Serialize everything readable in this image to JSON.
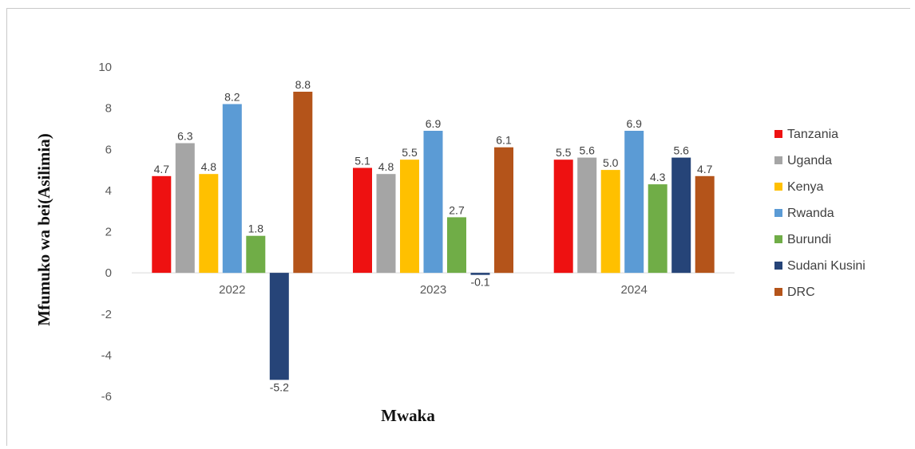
{
  "chart_data": {
    "type": "bar",
    "title": "",
    "xlabel": "Mwaka",
    "ylabel": "Mfumuko wa bei(Asilimia)",
    "categories": [
      "2022",
      "2023",
      "2024"
    ],
    "ylim": [
      -6,
      10
    ],
    "yticks": [
      "10",
      "8",
      "6",
      "4",
      "2",
      "0",
      "-2",
      "-4",
      "-6"
    ],
    "grid": false,
    "legend_position": "right",
    "series": [
      {
        "name": "Tanzania",
        "color": "#ee1111",
        "values": [
          4.7,
          5.1,
          5.5
        ],
        "labels": [
          "4.7",
          "5.1",
          "5.5"
        ]
      },
      {
        "name": "Uganda",
        "color": "#a5a5a5",
        "values": [
          6.3,
          4.8,
          5.6
        ],
        "labels": [
          "6.3",
          "4.8",
          "5.6"
        ]
      },
      {
        "name": "Kenya",
        "color": "#ffc000",
        "values": [
          4.8,
          5.5,
          5.0
        ],
        "labels": [
          "4.8",
          "5.5",
          "5.0"
        ]
      },
      {
        "name": "Rwanda",
        "color": "#5b9bd5",
        "values": [
          8.2,
          6.9,
          6.9
        ],
        "labels": [
          "8.2",
          "6.9",
          "6.9"
        ]
      },
      {
        "name": "Burundi",
        "color": "#70ad47",
        "values": [
          1.8,
          2.7,
          4.3
        ],
        "labels": [
          "1.8",
          "2.7",
          "4.3"
        ]
      },
      {
        "name": "Sudani Kusini",
        "color": "#264478",
        "values": [
          -5.2,
          -0.1,
          5.6
        ],
        "labels": [
          "-5.2",
          "-0.1",
          "5.6"
        ]
      },
      {
        "name": "DRC",
        "color": "#b4541a",
        "values": [
          8.8,
          6.1,
          4.7
        ],
        "labels": [
          "8.8",
          "6.1",
          "4.7"
        ]
      }
    ]
  }
}
